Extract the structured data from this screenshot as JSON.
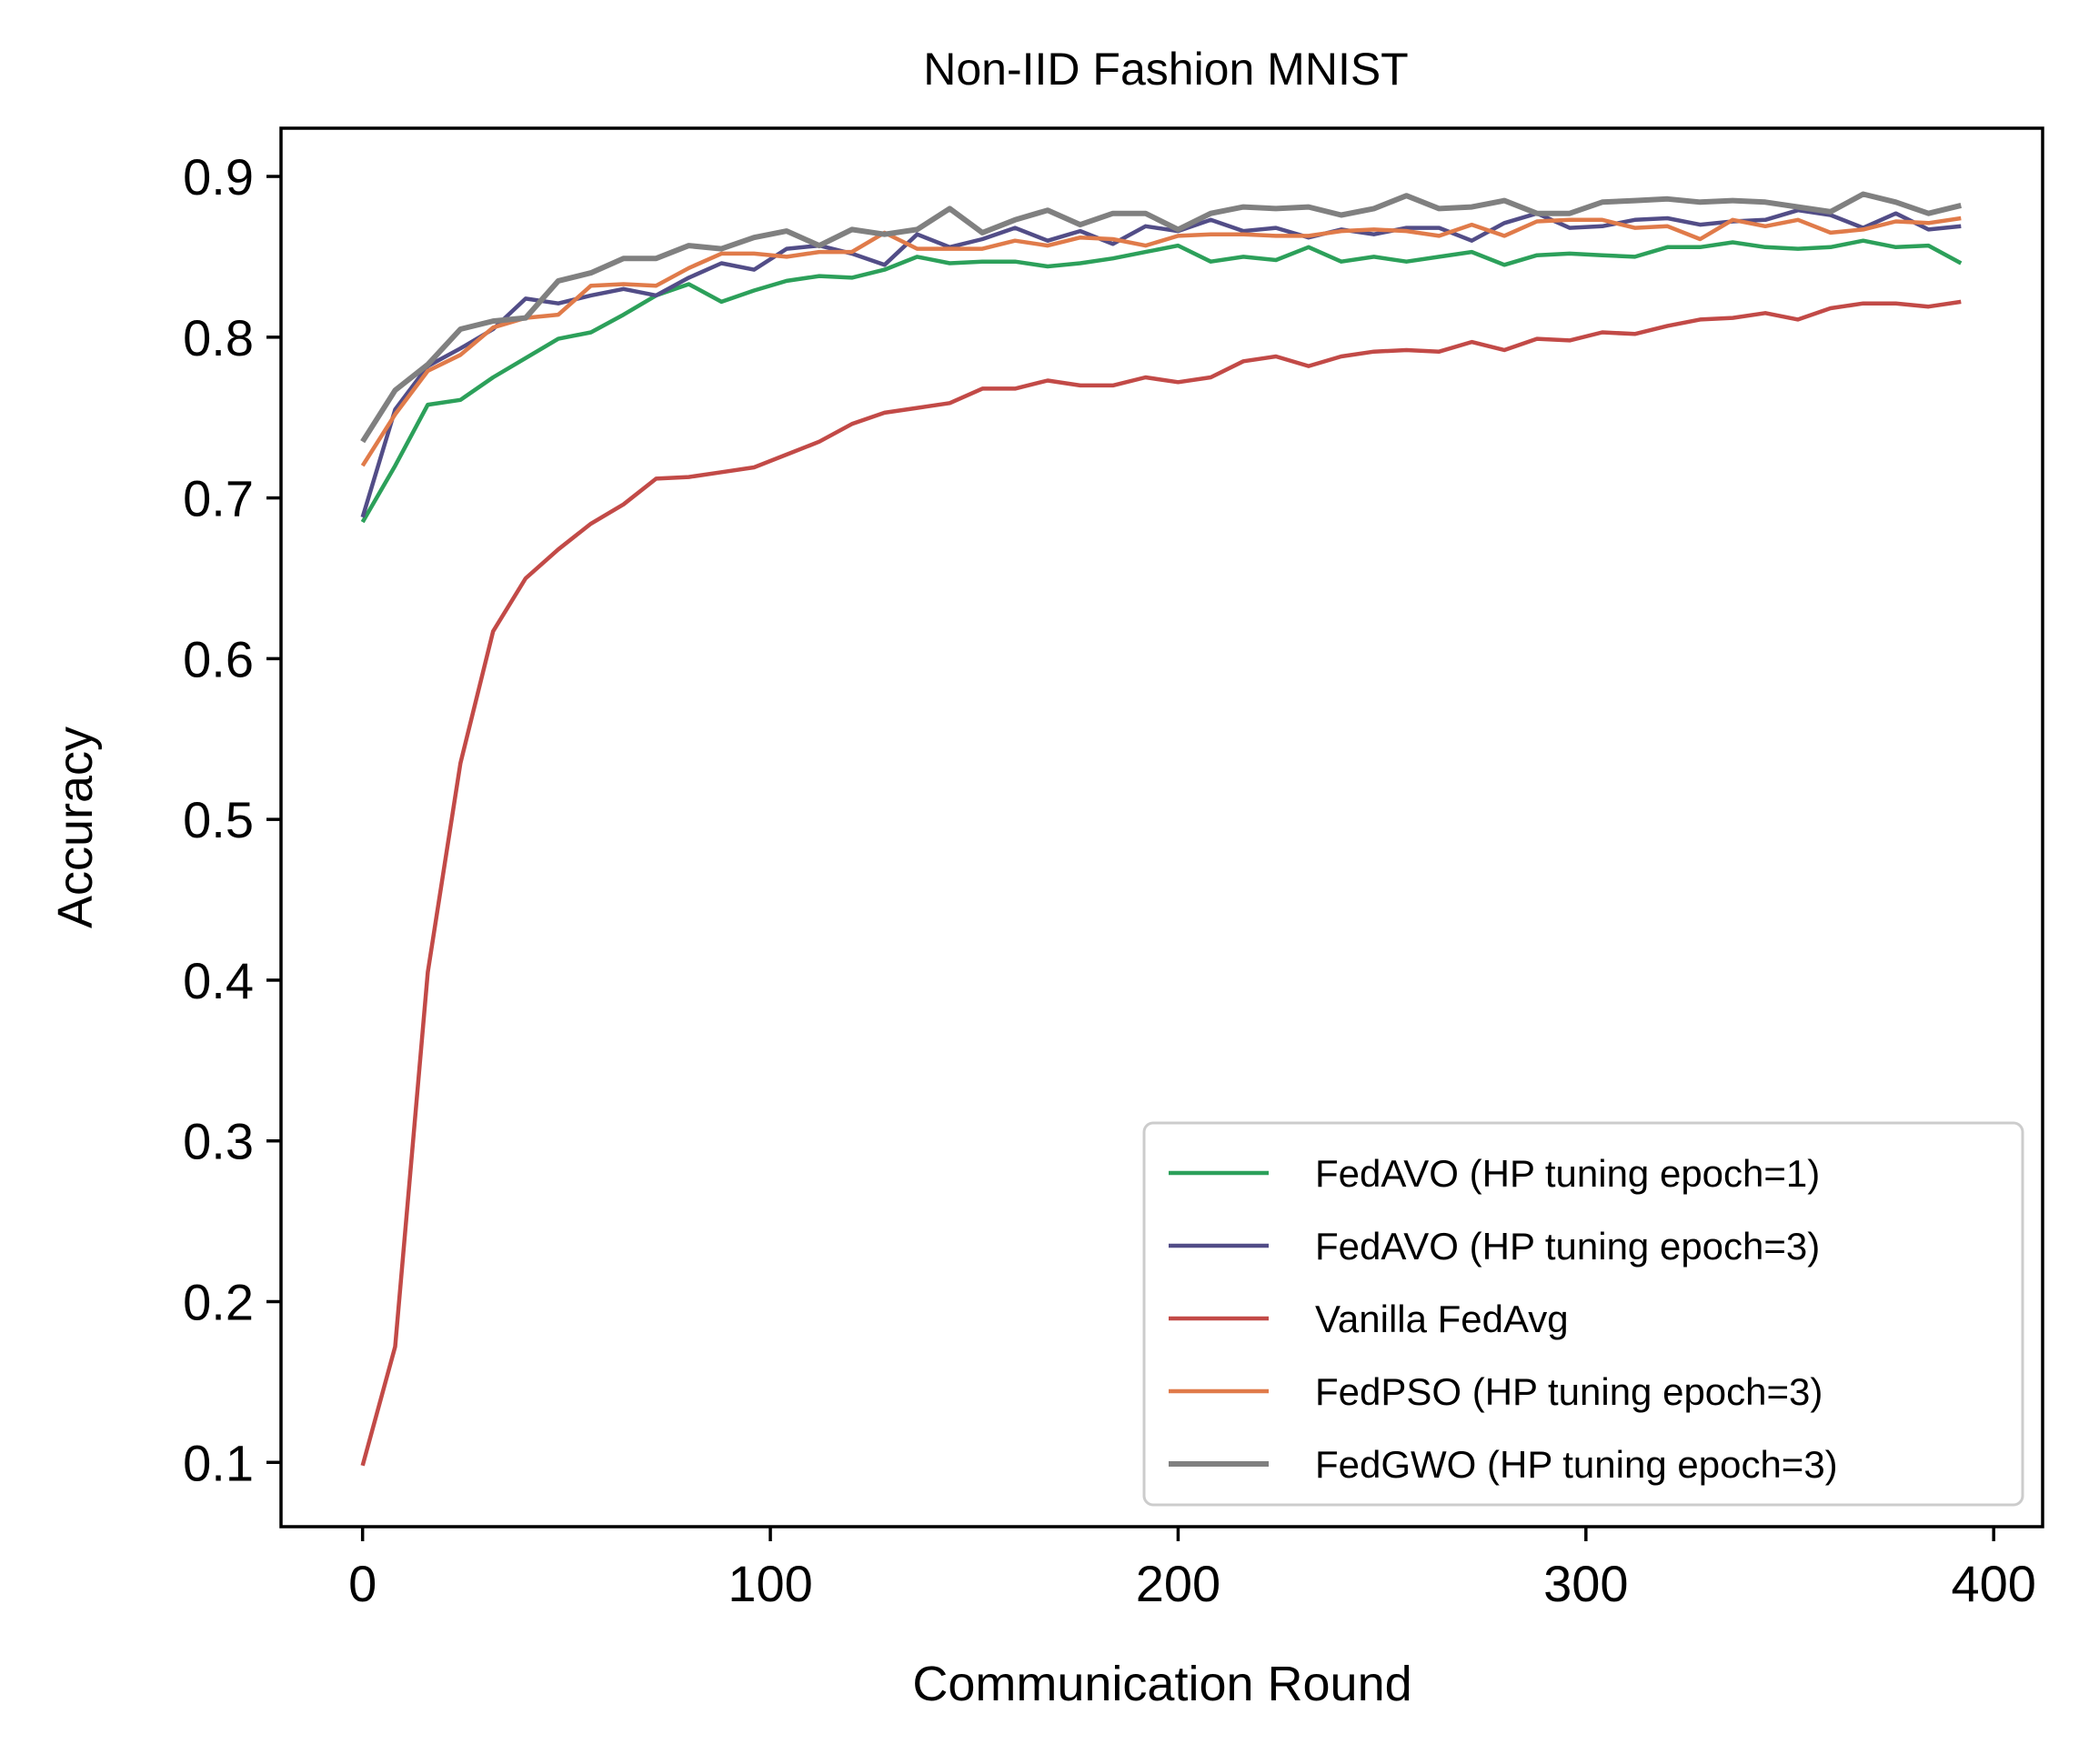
{
  "chart_data": {
    "type": "line",
    "title": "Non-IID Fashion MNIST",
    "xlabel": "Communication Round",
    "ylabel": "Accuracy",
    "xlim": [
      -20,
      412
    ],
    "ylim": [
      0.06,
      0.93
    ],
    "xticks": [
      0,
      100,
      200,
      300,
      400
    ],
    "yticks": [
      0.1,
      0.2,
      0.3,
      0.4,
      0.5,
      0.6,
      0.7,
      0.8,
      0.9
    ],
    "xtick_labels": [
      "0",
      "100",
      "200",
      "300",
      "400"
    ],
    "ytick_labels": [
      "0.1",
      "0.2",
      "0.3",
      "0.4",
      "0.5",
      "0.6",
      "0.7",
      "0.8",
      "0.9"
    ],
    "grid": false,
    "legend_position": "lower-right",
    "x": [
      0,
      8,
      16,
      24,
      32,
      40,
      48,
      56,
      64,
      72,
      80,
      88,
      96,
      104,
      112,
      120,
      128,
      136,
      144,
      152,
      160,
      168,
      176,
      184,
      192,
      200,
      208,
      216,
      224,
      232,
      240,
      248,
      256,
      264,
      272,
      280,
      288,
      296,
      304,
      312,
      320,
      328,
      336,
      344,
      352,
      360,
      368,
      376,
      384,
      392
    ],
    "series": [
      {
        "name": "FedAVO (HP tuning epoch=1)",
        "color": "#2ca05a",
        "values": [
          0.685,
          0.72,
          0.758,
          0.761,
          0.775,
          0.787,
          0.799,
          0.803,
          0.814,
          0.826,
          0.833,
          0.822,
          0.829,
          0.835,
          0.838,
          0.837,
          0.842,
          0.85,
          0.846,
          0.847,
          0.847,
          0.844,
          0.846,
          0.849,
          0.853,
          0.857,
          0.847,
          0.85,
          0.848,
          0.856,
          0.847,
          0.85,
          0.847,
          0.85,
          0.853,
          0.845,
          0.851,
          0.852,
          0.851,
          0.85,
          0.856,
          0.856,
          0.859,
          0.856,
          0.855,
          0.856,
          0.86,
          0.856,
          0.857,
          0.846
        ]
      },
      {
        "name": "FedAVO (HP tuning epoch=3)",
        "color": "#524d87",
        "values": [
          0.688,
          0.755,
          0.782,
          0.793,
          0.805,
          0.824,
          0.821,
          0.826,
          0.83,
          0.826,
          0.837,
          0.846,
          0.842,
          0.855,
          0.857,
          0.852,
          0.845,
          0.864,
          0.856,
          0.861,
          0.868,
          0.86,
          0.866,
          0.858,
          0.869,
          0.866,
          0.873,
          0.866,
          0.868,
          0.862,
          0.867,
          0.864,
          0.868,
          0.868,
          0.86,
          0.871,
          0.877,
          0.868,
          0.869,
          0.873,
          0.874,
          0.87,
          0.872,
          0.873,
          0.879,
          0.876,
          0.868,
          0.877,
          0.867,
          0.869
        ]
      },
      {
        "name": "Vanilla FedAvg",
        "color": "#c24a47",
        "values": [
          0.098,
          0.172,
          0.405,
          0.535,
          0.617,
          0.65,
          0.668,
          0.684,
          0.696,
          0.712,
          0.713,
          0.716,
          0.719,
          0.727,
          0.735,
          0.746,
          0.753,
          0.756,
          0.759,
          0.768,
          0.768,
          0.773,
          0.77,
          0.77,
          0.775,
          0.772,
          0.775,
          0.785,
          0.788,
          0.782,
          0.788,
          0.791,
          0.792,
          0.791,
          0.797,
          0.792,
          0.799,
          0.798,
          0.803,
          0.802,
          0.807,
          0.811,
          0.812,
          0.815,
          0.811,
          0.818,
          0.821,
          0.821,
          0.819,
          0.822
        ]
      },
      {
        "name": "FedPSO (HP tuning epoch=3)",
        "color": "#e07b4a",
        "values": [
          0.72,
          0.752,
          0.779,
          0.789,
          0.806,
          0.812,
          0.814,
          0.832,
          0.833,
          0.832,
          0.843,
          0.852,
          0.852,
          0.85,
          0.853,
          0.853,
          0.865,
          0.855,
          0.855,
          0.855,
          0.86,
          0.857,
          0.862,
          0.861,
          0.857,
          0.863,
          0.864,
          0.864,
          0.863,
          0.863,
          0.866,
          0.867,
          0.866,
          0.863,
          0.87,
          0.863,
          0.872,
          0.873,
          0.873,
          0.868,
          0.869,
          0.861,
          0.873,
          0.869,
          0.873,
          0.865,
          0.867,
          0.872,
          0.871,
          0.874
        ]
      },
      {
        "name": "FedGWO (HP tuning epoch=3)",
        "color": "#808080",
        "values": [
          0.735,
          0.767,
          0.783,
          0.805,
          0.81,
          0.812,
          0.835,
          0.84,
          0.849,
          0.849,
          0.857,
          0.855,
          0.862,
          0.866,
          0.857,
          0.867,
          0.864,
          0.867,
          0.88,
          0.865,
          0.873,
          0.879,
          0.87,
          0.877,
          0.877,
          0.867,
          0.877,
          0.881,
          0.88,
          0.881,
          0.876,
          0.88,
          0.888,
          0.88,
          0.881,
          0.885,
          0.877,
          0.877,
          0.884,
          0.885,
          0.886,
          0.884,
          0.885,
          0.884,
          0.881,
          0.878,
          0.889,
          0.884,
          0.877,
          0.882
        ]
      }
    ]
  }
}
